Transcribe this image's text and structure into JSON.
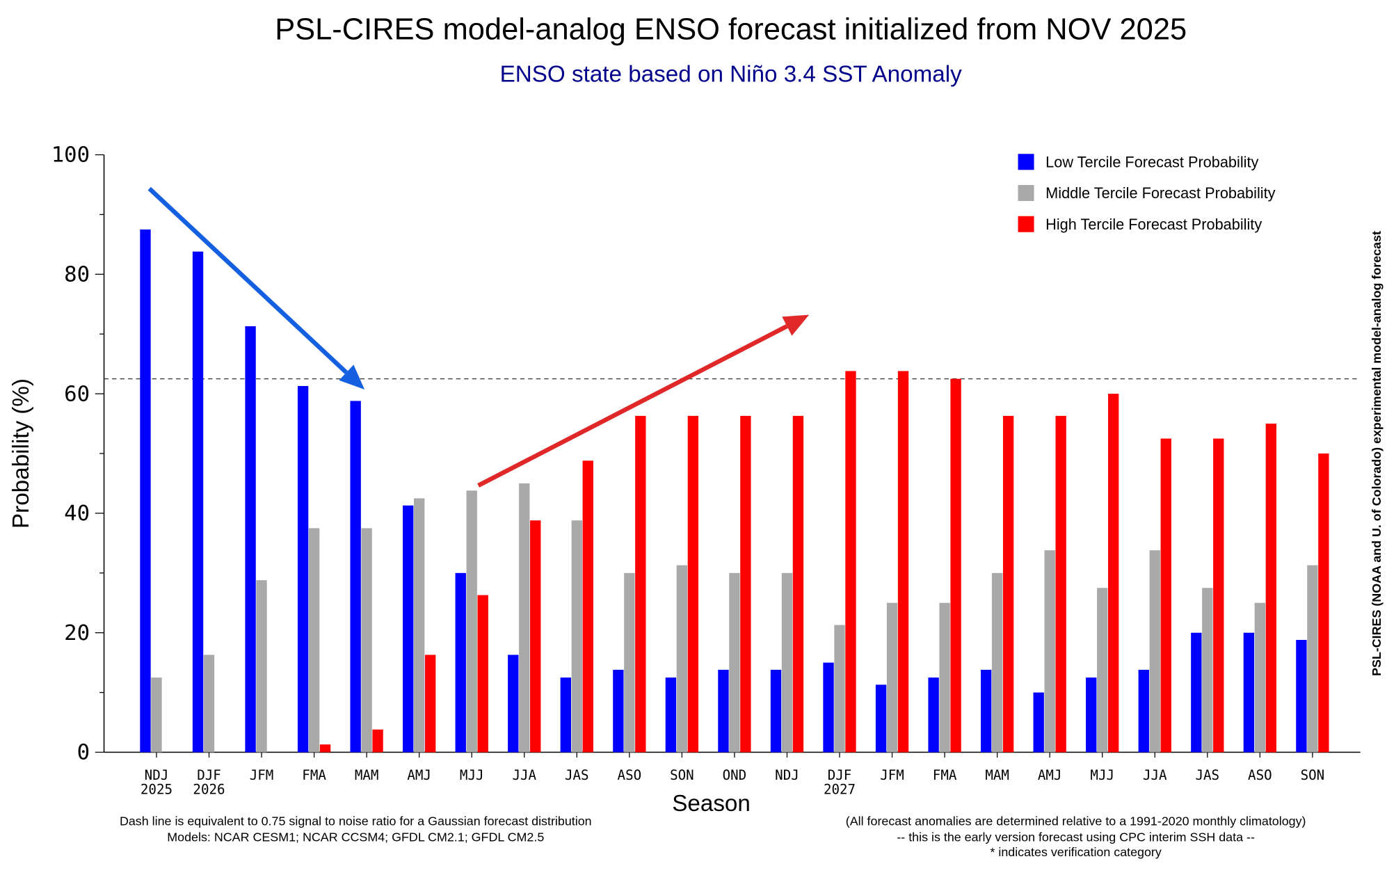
{
  "chart_data": {
    "type": "bar",
    "title": "PSL-CIRES model-analog ENSO forecast initialized from NOV 2025",
    "subtitle": "ENSO state based on Niño 3.4 SST Anomaly",
    "xlabel": "Season",
    "ylabel": "Probability (%)",
    "side_label": "PSL-CIRES (NOAA and U. of Colorado) experimental model-analog forecast",
    "ylim": [
      0,
      100
    ],
    "yticks": [
      "0",
      "20",
      "40",
      "60",
      "80",
      "100"
    ],
    "categories": [
      "NDJ",
      "DJF",
      "JFM",
      "FMA",
      "MAM",
      "AMJ",
      "MJJ",
      "JJA",
      "JAS",
      "ASO",
      "SON",
      "OND",
      "NDJ",
      "DJF",
      "JFM",
      "FMA",
      "MAM",
      "AMJ",
      "MJJ",
      "JJA",
      "JAS",
      "ASO",
      "SON"
    ],
    "category_years": {
      "0": "2025",
      "1": "2026",
      "13": "2027"
    },
    "legend_position": "top-right",
    "series": [
      {
        "name": "Low Tercile Forecast Probability",
        "color": "#0000ff",
        "values": [
          87.5,
          83.8,
          71.3,
          61.3,
          58.8,
          41.3,
          30.0,
          16.3,
          12.5,
          13.8,
          12.5,
          13.8,
          13.8,
          15.0,
          11.3,
          12.5,
          13.8,
          10.0,
          12.5,
          13.8,
          20.0,
          20.0,
          18.8
        ]
      },
      {
        "name": "Middle Tercile Forecast Probability",
        "color": "#a9a9a9",
        "values": [
          12.5,
          16.3,
          28.8,
          37.5,
          37.5,
          42.5,
          43.8,
          45.0,
          38.8,
          30.0,
          31.3,
          30.0,
          30.0,
          21.3,
          25.0,
          25.0,
          30.0,
          33.8,
          27.5,
          33.8,
          27.5,
          25.0,
          31.3
        ]
      },
      {
        "name": "High Tercile Forecast Probability",
        "color": "#ff0000",
        "values": [
          0,
          0,
          0,
          1.3,
          3.8,
          16.3,
          26.3,
          38.8,
          48.8,
          56.3,
          56.3,
          56.3,
          56.3,
          63.8,
          63.8,
          62.5,
          56.3,
          56.3,
          60.0,
          52.5,
          52.5,
          55.0,
          50.0
        ]
      }
    ],
    "dash_line_value": 62.5,
    "notes_left": [
      "Dash line is equivalent to 0.75 signal to noise ratio for a Gaussian forecast distribution",
      "Models: NCAR CESM1; NCAR CCSM4; GFDL CM2.1; GFDL CM2.5"
    ],
    "notes_right": [
      "(All forecast anomalies are determined relative to a 1991-2020 monthly climatology)",
      "-- this is the early version forecast using CPC interim SSH data --",
      "* indicates verification category"
    ],
    "annotations": [
      {
        "type": "arrow",
        "color": "#1560e0",
        "direction": "down"
      },
      {
        "type": "arrow",
        "color": "#e02828",
        "direction": "up"
      }
    ]
  }
}
